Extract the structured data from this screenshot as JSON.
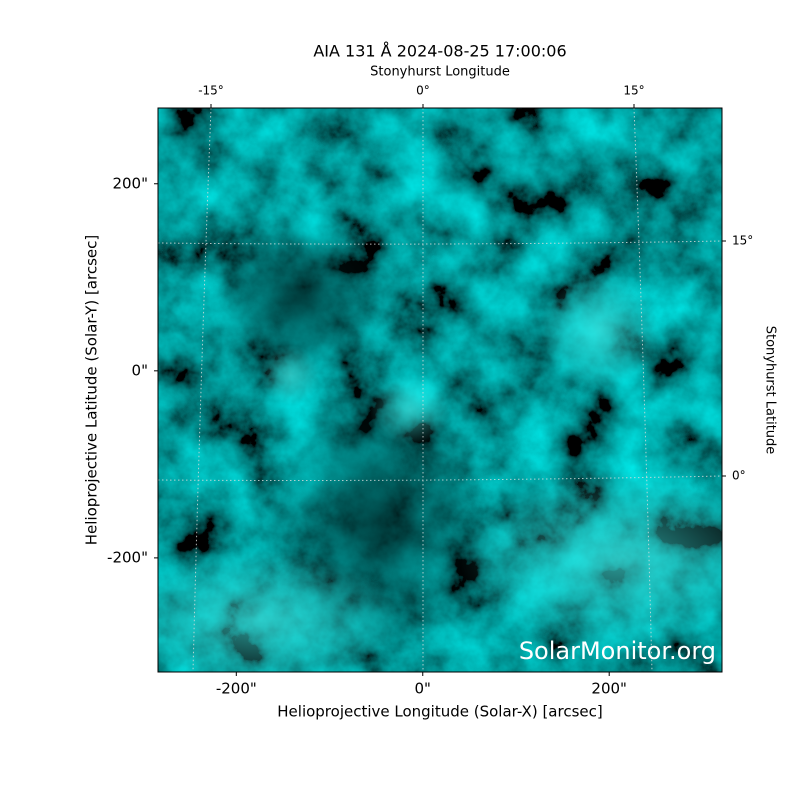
{
  "chart_data": {
    "type": "image",
    "title": "AIA 131 Å 2024-08-25 17:00:06",
    "x_label": "Helioprojective Longitude (Solar-X) [arcsec]",
    "y_label": "Helioprojective Latitude (Solar-Y) [arcsec]",
    "top_label": "Stonyhurst Longitude",
    "right_label": "Stonyhurst Latitude",
    "top_ticks": [
      "-15°",
      "0°",
      "15°"
    ],
    "right_ticks": [
      "15°",
      "0°"
    ],
    "watermark": "SolarMonitor.org",
    "xlim": [
      -284,
      321
    ],
    "ylim": [
      -322,
      281
    ],
    "xticks": [
      {
        "value": -200,
        "label": "-200\""
      },
      {
        "value": 0,
        "label": "0\""
      },
      {
        "value": 200,
        "label": "200\""
      }
    ],
    "yticks": [
      {
        "value": -200,
        "label": "-200\""
      },
      {
        "value": 0,
        "label": "0\""
      },
      {
        "value": 200,
        "label": "200\""
      }
    ],
    "color": "#00b4b4"
  }
}
